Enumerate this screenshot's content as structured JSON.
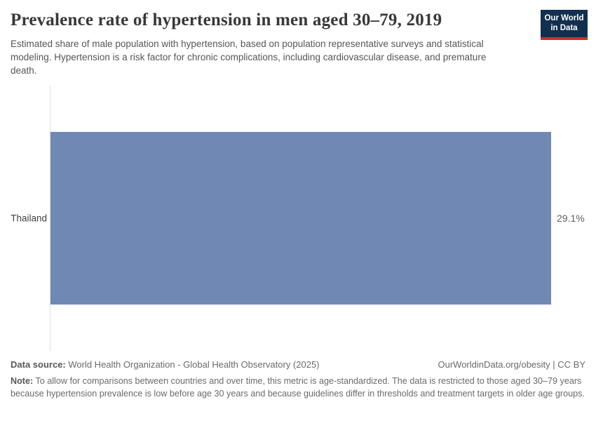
{
  "header": {
    "title": "Prevalence rate of hypertension in men aged 30–79, 2019",
    "subtitle": "Estimated share of male population with hypertension, based on population representative surveys and statistical modeling. Hypertension is a risk factor for chronic complications, including cardiovascular disease, and premature death.",
    "logo": {
      "line1": "Our World",
      "line2": "in Data"
    }
  },
  "chart_data": {
    "type": "bar",
    "orientation": "horizontal",
    "title": "Prevalence rate of hypertension in men aged 30–79, 2019",
    "categories": [
      "Thailand"
    ],
    "values": [
      29.1
    ],
    "value_labels": [
      "29.1%"
    ],
    "xlabel": "",
    "ylabel": "",
    "xlim": [
      0,
      29.1
    ],
    "grid": false,
    "legend": false
  },
  "footer": {
    "data_source_label": "Data source:",
    "data_source_text": " World Health Organization - Global Health Observatory (2025)",
    "license_text": "OurWorldinData.org/obesity | CC BY",
    "note_label": "Note:",
    "note_text": " To allow for comparisons between countries and over time, this metric is age-standardized. The data is restricted to those aged 30–79 years because hypertension prevalence is low before age 30 years and because guidelines differ in thresholds and treatment targets in older age groups."
  },
  "colors": {
    "bar": "#7088b4",
    "logo_bg": "#12304e",
    "logo_red": "#d42b2b",
    "axis_line": "#dedede",
    "title_text": "#383838"
  }
}
